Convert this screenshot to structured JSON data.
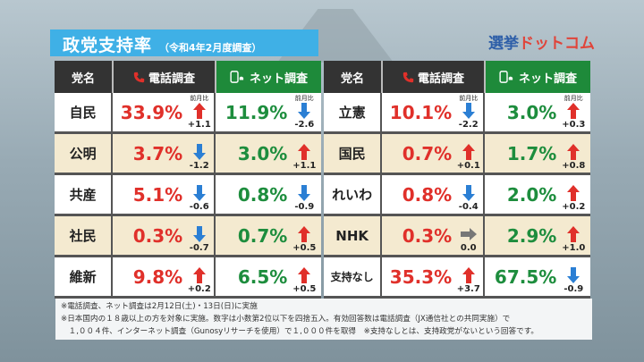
{
  "title": "政党支持率",
  "subtitle": "（令和4年2月度調査）",
  "logo": {
    "part1": "選挙",
    "part2": "ドットコム"
  },
  "headers": {
    "party": "党名",
    "telephone": "電話調査",
    "internet": "ネット調査",
    "change_label": "前月比"
  },
  "colors": {
    "telephone_value": "#e0302a",
    "internet_value": "#1d8d3d",
    "up_arrow": "#e0302a",
    "down_arrow": "#2b7fd4",
    "flat_arrow": "#777777",
    "title_bg": "#3fb0e6",
    "net_header": "#1e8a3a"
  },
  "chart_data": {
    "type": "table",
    "columns": [
      "党名",
      "電話調査",
      "前月比",
      "ネット調査",
      "前月比"
    ],
    "rows": [
      {
        "party": "自民",
        "tel": "33.9%",
        "tel_chg": "+1.1",
        "tel_dir": "up",
        "net": "11.9%",
        "net_chg": "-2.6",
        "net_dir": "down"
      },
      {
        "party": "公明",
        "tel": "3.7%",
        "tel_chg": "-1.2",
        "tel_dir": "down",
        "net": "3.0%",
        "net_chg": "+1.1",
        "net_dir": "up"
      },
      {
        "party": "共産",
        "tel": "5.1%",
        "tel_chg": "-0.6",
        "tel_dir": "down",
        "net": "0.8%",
        "net_chg": "-0.9",
        "net_dir": "down"
      },
      {
        "party": "社民",
        "tel": "0.3%",
        "tel_chg": "-0.7",
        "tel_dir": "down",
        "net": "0.7%",
        "net_chg": "+0.5",
        "net_dir": "up"
      },
      {
        "party": "維新",
        "tel": "9.8%",
        "tel_chg": "+0.2",
        "tel_dir": "up",
        "net": "6.5%",
        "net_chg": "+0.5",
        "net_dir": "up"
      },
      {
        "party": "立憲",
        "tel": "10.1%",
        "tel_chg": "-2.2",
        "tel_dir": "down",
        "net": "3.0%",
        "net_chg": "+0.3",
        "net_dir": "up"
      },
      {
        "party": "国民",
        "tel": "0.7%",
        "tel_chg": "+0.1",
        "tel_dir": "up",
        "net": "1.7%",
        "net_chg": "+0.8",
        "net_dir": "up"
      },
      {
        "party": "れいわ",
        "tel": "0.8%",
        "tel_chg": "-0.4",
        "tel_dir": "down",
        "net": "2.0%",
        "net_chg": "+0.2",
        "net_dir": "up"
      },
      {
        "party": "NHK",
        "tel": "0.3%",
        "tel_chg": "0.0",
        "tel_dir": "flat",
        "net": "2.9%",
        "net_chg": "+1.0",
        "net_dir": "up"
      },
      {
        "party": "支持なし",
        "tel": "35.3%",
        "tel_chg": "+3.7",
        "tel_dir": "up",
        "net": "67.5%",
        "net_chg": "-0.9",
        "net_dir": "down"
      }
    ]
  },
  "notes": [
    "※電話調査、ネット調査は2月12日(土)・13日(日)に実施",
    "※日本国内の１８歳以上の方を対象に実施。数字は小数第2位以下を四捨五入。有効回答数は電話調査（JX通信社との共同実施）で",
    "　１,００４件、インターネット調査（Gunosyリサーチを使用）で１,０００件を取得　※支持なしとは、支持政党がないという回答です。"
  ]
}
